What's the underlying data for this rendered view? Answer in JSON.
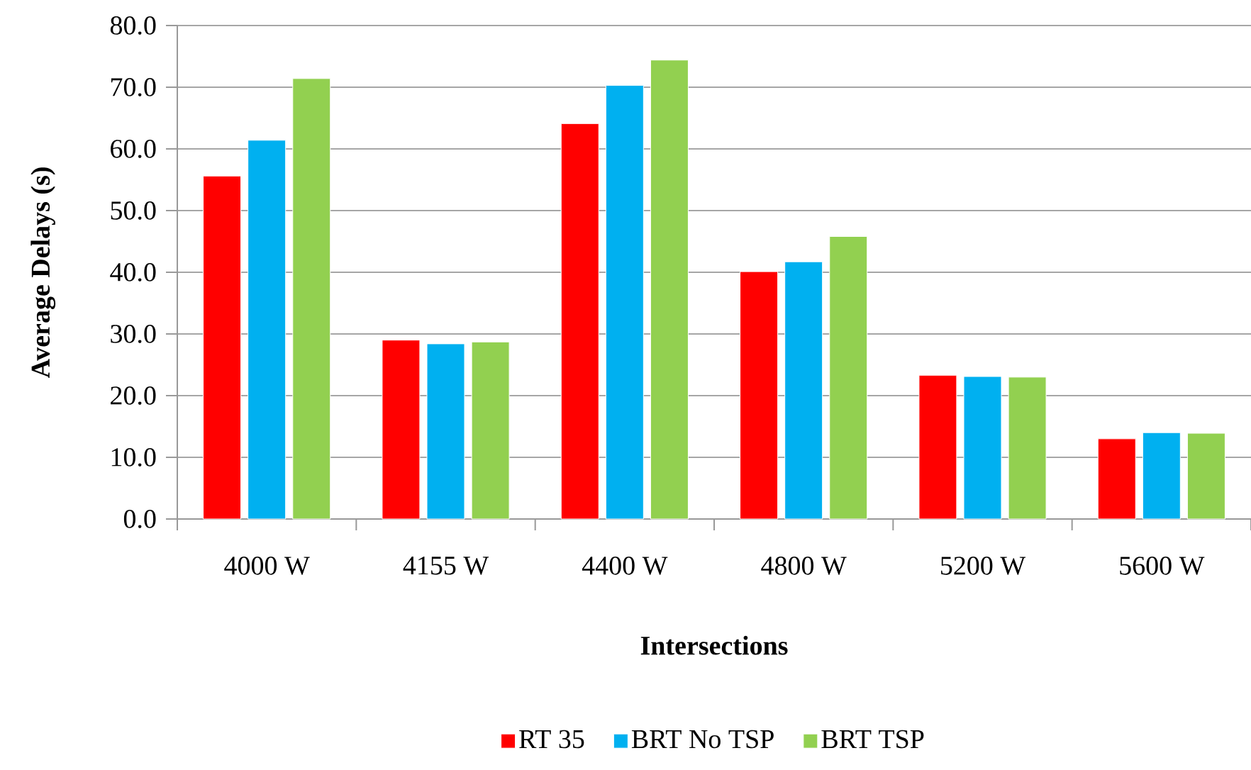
{
  "chart_data": {
    "type": "bar",
    "xlabel": "Intersections",
    "ylabel": "Average Delays (s)",
    "categories": [
      "4000 W",
      "4155 W",
      "4400 W",
      "4800 W",
      "5200 W",
      "5600 W"
    ],
    "series": [
      {
        "name": "RT 35",
        "color": "#ff0000",
        "values": [
          55.6,
          29.0,
          64.1,
          40.1,
          23.3,
          13.0
        ]
      },
      {
        "name": "BRT No TSP",
        "color": "#00b0f0",
        "values": [
          61.4,
          28.4,
          70.3,
          41.7,
          23.1,
          14.0
        ]
      },
      {
        "name": "BRT TSP",
        "color": "#92d050",
        "values": [
          71.4,
          28.7,
          74.4,
          45.8,
          23.0,
          13.9
        ]
      }
    ],
    "ylim": [
      0,
      80
    ],
    "yticks": [
      {
        "value": 0,
        "label": "0.0"
      },
      {
        "value": 10,
        "label": "10.0"
      },
      {
        "value": 20,
        "label": "20.0"
      },
      {
        "value": 30,
        "label": "30.0"
      },
      {
        "value": 40,
        "label": "40.0"
      },
      {
        "value": 50,
        "label": "50.0"
      },
      {
        "value": 60,
        "label": "60.0"
      },
      {
        "value": 70,
        "label": "70.0"
      },
      {
        "value": 80,
        "label": "80.0"
      }
    ],
    "grid": "y",
    "legend": "bottom"
  }
}
